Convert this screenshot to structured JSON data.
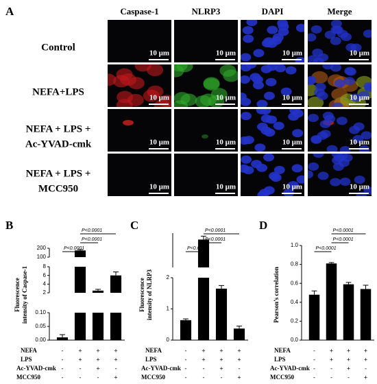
{
  "panel_a": {
    "label": "A",
    "columns": [
      "Caspase-1",
      "NLRP3",
      "DAPI",
      "Merge"
    ],
    "rows": [
      [
        "Control"
      ],
      [
        "NEFA+LPS"
      ],
      [
        "NEFA + LPS +",
        "Ac-YVAD-cmk"
      ],
      [
        "NEFA + LPS +",
        "MCC950"
      ]
    ],
    "scale_bar": "10 μm"
  },
  "treatment_table": {
    "rows": [
      "NEFA",
      "LPS",
      "Ac-YVAD-cmk",
      "MCC950"
    ],
    "signs": [
      [
        "-",
        "+",
        "+",
        "+"
      ],
      [
        "-",
        "+",
        "+",
        "+"
      ],
      [
        "-",
        "-",
        "+",
        "-"
      ],
      [
        "-",
        "-",
        "-",
        "+"
      ]
    ]
  },
  "chart_data": [
    {
      "type": "bar",
      "panel": "B",
      "ylabel": [
        "Fluorescence",
        "intensity of Caspase-1"
      ],
      "values": [
        0.01,
        175,
        2.5,
        6
      ],
      "errors": [
        0.01,
        10,
        0.3,
        0.8
      ],
      "color": "#000000",
      "segments": [
        {
          "ylim": [
            0,
            0.1
          ],
          "yticks": [
            {
              "value": 0,
              "label": "0.00"
            },
            0.05,
            {
              "value": 0.1,
              "label": "0.10"
            }
          ]
        },
        {
          "ylim": [
            2,
            8
          ],
          "yticks": [
            2,
            4,
            6,
            8
          ]
        },
        {
          "ylim": [
            100,
            200
          ],
          "yticks": [
            100,
            200
          ]
        }
      ],
      "significance_labels": [
        "P<0.0001",
        "P<0.0001",
        "P<0.0001"
      ]
    },
    {
      "type": "bar",
      "panel": "C",
      "ylabel": [
        "Fluorescence",
        "intensity of NLRP3"
      ],
      "values": [
        0.64,
        8.5,
        1.65,
        0.37
      ],
      "errors": [
        0.04,
        0.8,
        0.1,
        0.08
      ],
      "color": "#000000",
      "segments": [
        {
          "ylim": [
            0,
            2
          ],
          "yticks": [
            0,
            1,
            2
          ]
        },
        {
          "ylim": [
            2,
            10
          ]
        }
      ],
      "significance_labels": [
        "P<0.0001",
        "P<0.0001",
        "P<0.0001"
      ]
    },
    {
      "type": "bar",
      "panel": "D",
      "ylabel": [
        "Pearson’s correlation"
      ],
      "values": [
        0.48,
        0.81,
        0.59,
        0.54
      ],
      "errors": [
        0.04,
        0.01,
        0.02,
        0.04
      ],
      "color": "#000000",
      "segments": [
        {
          "ylim": [
            0,
            1
          ],
          "yticks": [
            {
              "value": 0,
              "label": "0.0"
            },
            0.2,
            0.4,
            0.6,
            0.8,
            {
              "value": 1,
              "label": "1.0"
            }
          ]
        }
      ],
      "significance_labels": [
        "P<0.0001",
        "P<0.0001",
        "P<0.0001"
      ]
    }
  ]
}
